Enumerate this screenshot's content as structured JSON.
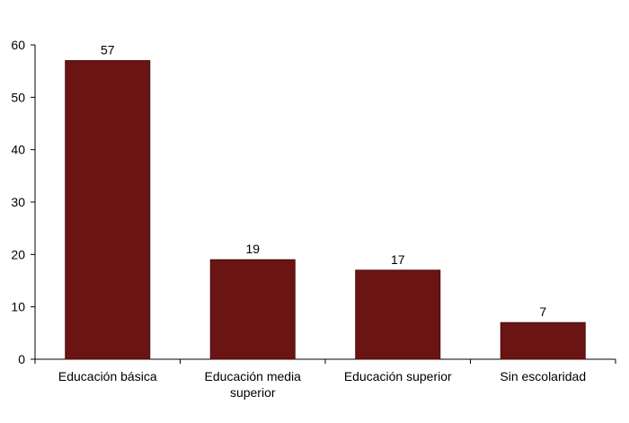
{
  "chart_data": {
    "type": "bar",
    "categories": [
      "Educación básica",
      "Educación media superior",
      "Educación superior",
      "Sin escolaridad"
    ],
    "category_label_lines": [
      [
        "Educación básica"
      ],
      [
        "Educación media",
        "superior"
      ],
      [
        "Educación superior"
      ],
      [
        "Sin escolaridad"
      ]
    ],
    "values": [
      57,
      19,
      17,
      7
    ],
    "data_labels": [
      "57",
      "19",
      "17",
      "7"
    ],
    "title": "",
    "xlabel": "",
    "ylabel": "",
    "ylim": [
      0,
      60
    ],
    "yticks": [
      0,
      10,
      20,
      30,
      40,
      50,
      60
    ],
    "ytick_labels": [
      "0",
      "10",
      "20",
      "30",
      "40",
      "50",
      "60"
    ],
    "grid": false,
    "legend": "none",
    "colors": {
      "bar": "#6B1414",
      "bar_edge": "#4a0c0c",
      "axis": "#000000",
      "text": "#000000"
    }
  }
}
